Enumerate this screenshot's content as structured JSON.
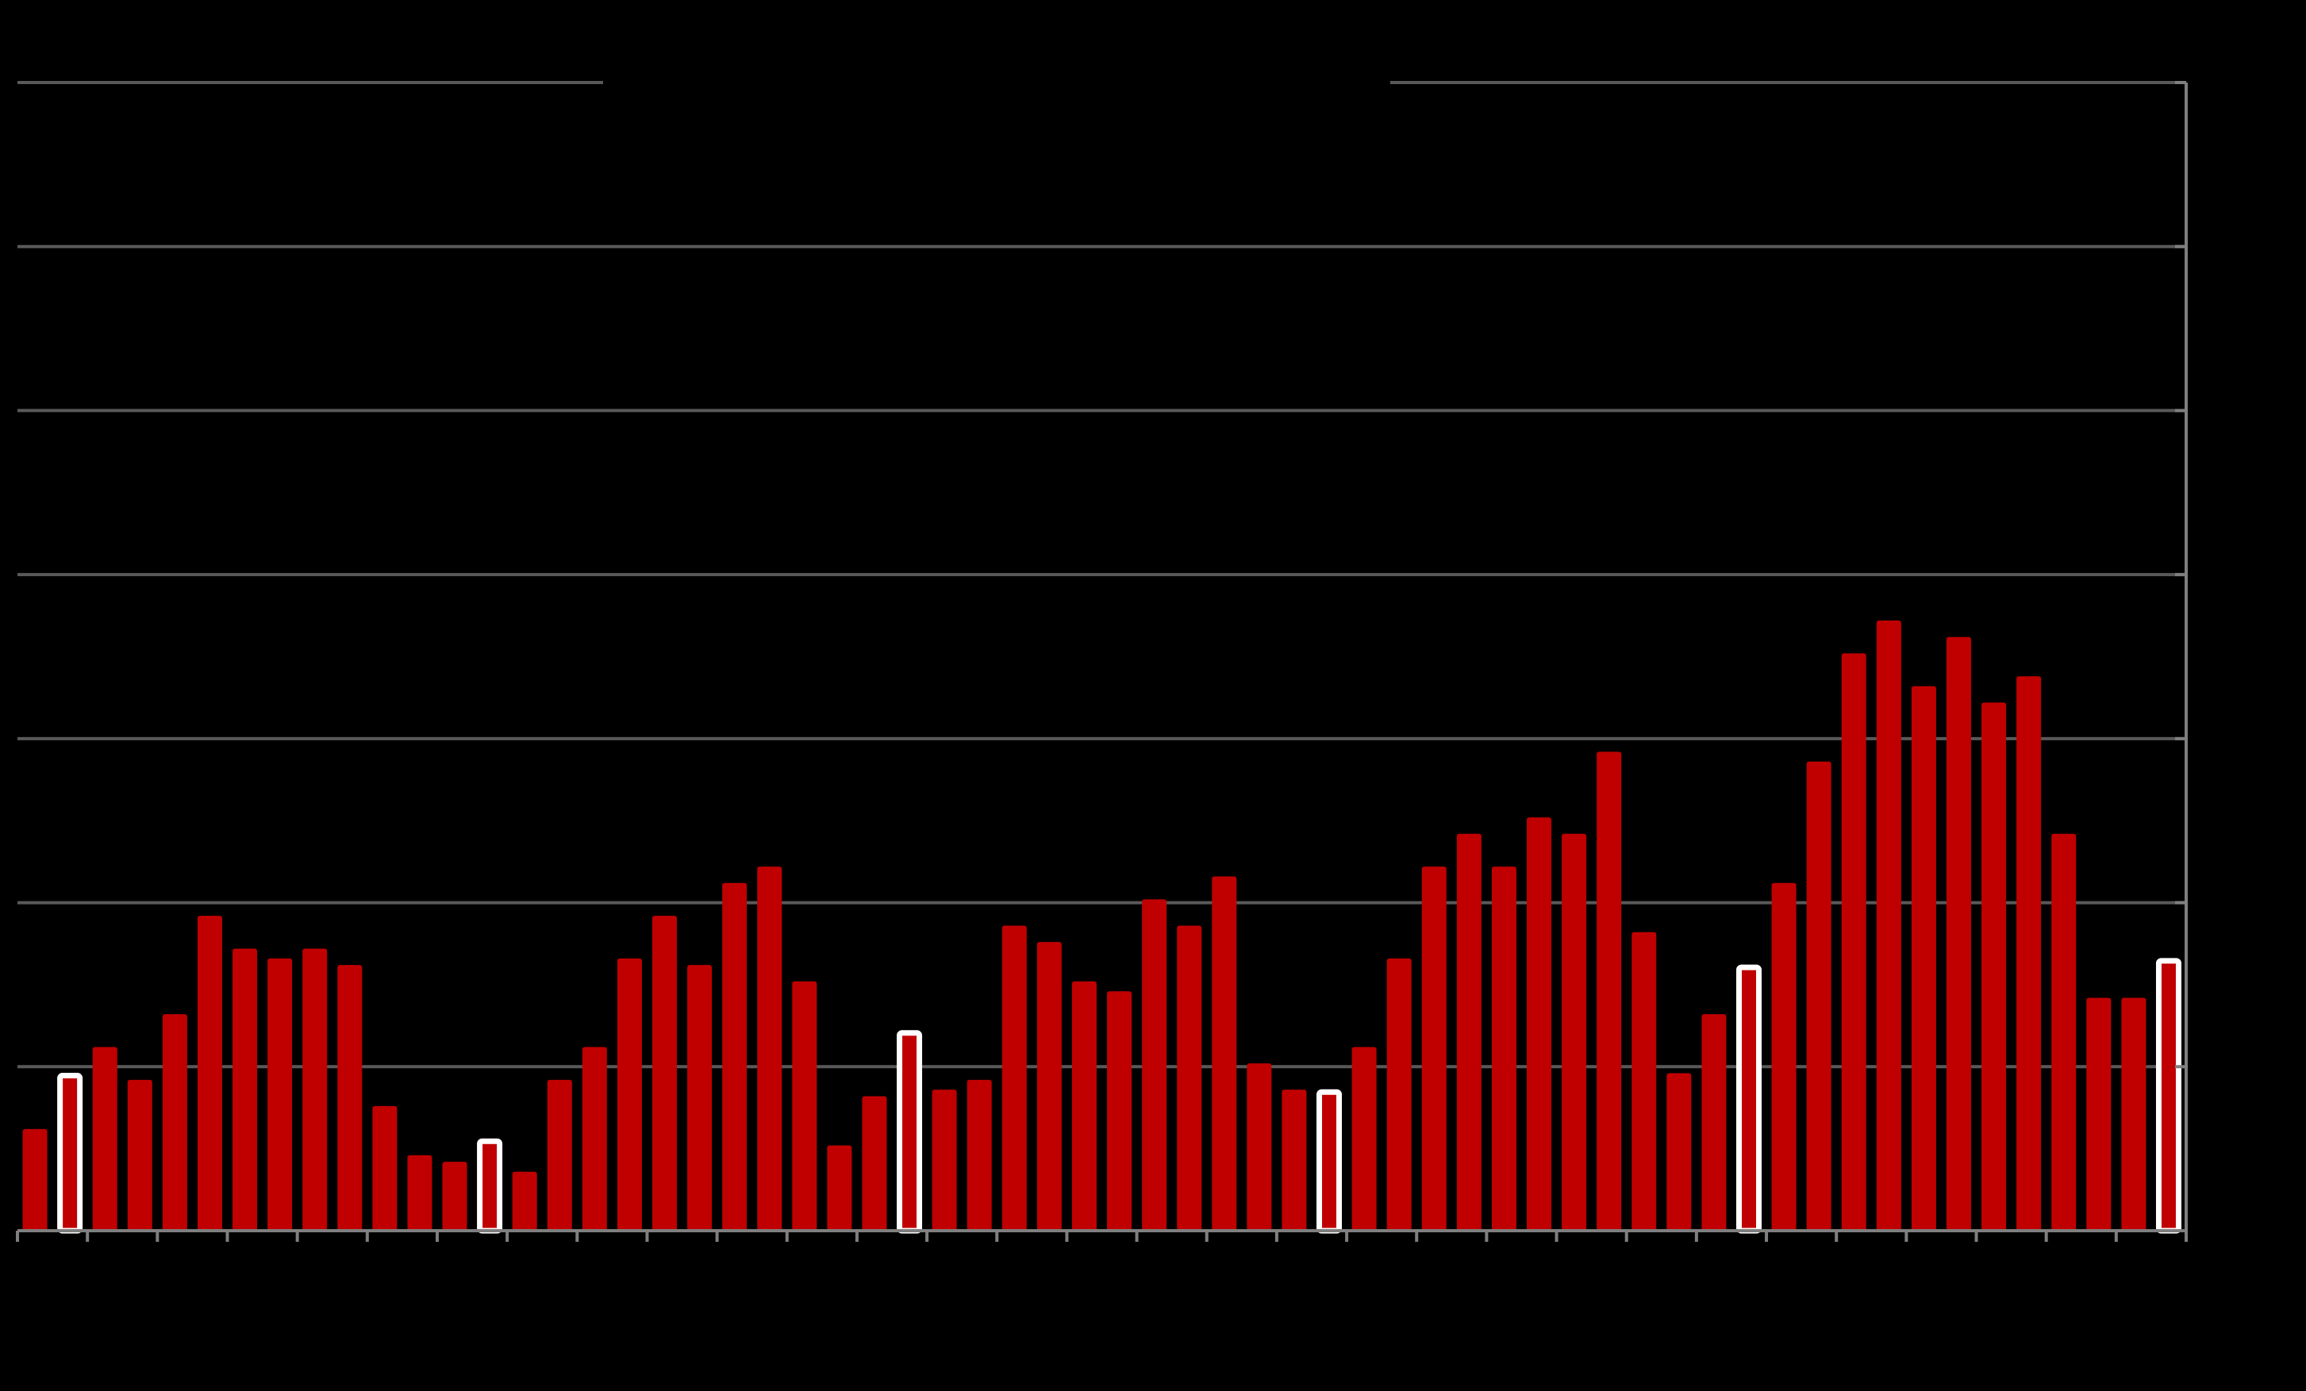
{
  "chart_data": {
    "type": "bar",
    "title": "",
    "xlabel": "",
    "ylabel": "",
    "ylim": [
      0,
      35
    ],
    "grid": true,
    "gridline_values": [
      5,
      10,
      15,
      20,
      25,
      30,
      35
    ],
    "legend": "none",
    "highlighted_indices": [
      1,
      13,
      25,
      37,
      49,
      61
    ],
    "values": [
      3.1,
      4.8,
      5.6,
      4.6,
      6.6,
      9.6,
      8.6,
      8.3,
      8.6,
      8.1,
      3.8,
      2.3,
      2.1,
      2.8,
      1.8,
      4.6,
      5.6,
      8.3,
      9.6,
      8.1,
      10.6,
      11.1,
      7.6,
      2.6,
      4.1,
      6.1,
      4.3,
      4.6,
      9.3,
      8.8,
      7.6,
      7.3,
      10.1,
      9.3,
      10.8,
      5.1,
      4.3,
      4.3,
      5.6,
      8.3,
      11.1,
      12.1,
      11.1,
      12.6,
      12.1,
      14.6,
      9.1,
      4.8,
      6.6,
      8.1,
      10.6,
      14.3,
      17.6,
      18.6,
      16.6,
      18.1,
      16.1,
      16.9,
      12.1,
      7.1,
      7.1,
      8.3
    ]
  },
  "colors": {
    "background": "#000000",
    "bar": "#c00000",
    "highlight_bar_fill": "#c00000",
    "highlight_bar_outline": "#ffffff",
    "gridline": "#595959",
    "axis": "#7f7f7f"
  }
}
